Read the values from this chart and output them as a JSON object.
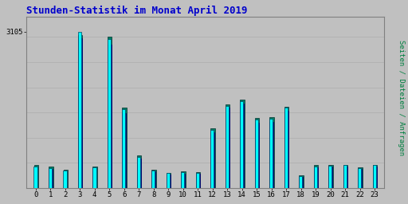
{
  "title": "Stunden-Statistik im Monat April 2019",
  "ylabel": "Seiten / Dateien / Anfragen",
  "xlabel_values": [
    0,
    1,
    2,
    3,
    4,
    5,
    6,
    7,
    8,
    9,
    10,
    11,
    12,
    13,
    14,
    15,
    16,
    17,
    18,
    19,
    20,
    21,
    22,
    23
  ],
  "cyan_values": [
    430,
    400,
    350,
    3105,
    410,
    2960,
    1560,
    610,
    350,
    295,
    310,
    300,
    1160,
    1630,
    1720,
    1360,
    1370,
    1590,
    240,
    430,
    440,
    450,
    400,
    450
  ],
  "blue_values": [
    410,
    380,
    330,
    2980,
    390,
    2850,
    1490,
    580,
    325,
    275,
    290,
    278,
    1110,
    1590,
    1670,
    1300,
    1310,
    1530,
    220,
    405,
    420,
    425,
    378,
    428
  ],
  "teal_values": [
    450,
    420,
    370,
    3040,
    430,
    3000,
    1600,
    640,
    365,
    305,
    325,
    310,
    1190,
    1660,
    1750,
    1390,
    1400,
    1620,
    250,
    450,
    455,
    465,
    415,
    465
  ],
  "cyan_color": "#00FFFF",
  "blue_color": "#0000CD",
  "teal_color": "#008060",
  "background_color": "#C0C0C0",
  "title_color": "#0000CC",
  "ylabel_color": "#008040",
  "grid_color": "#B0B0B0",
  "ytick_label": "3105",
  "ytick_value": 3105,
  "ylim_max": 3400,
  "title_fontsize": 9,
  "axis_fontsize": 6.5,
  "ylabel_fontsize": 6.5,
  "grid_lines": [
    500,
    1000,
    1500,
    2000,
    2500,
    3000
  ]
}
